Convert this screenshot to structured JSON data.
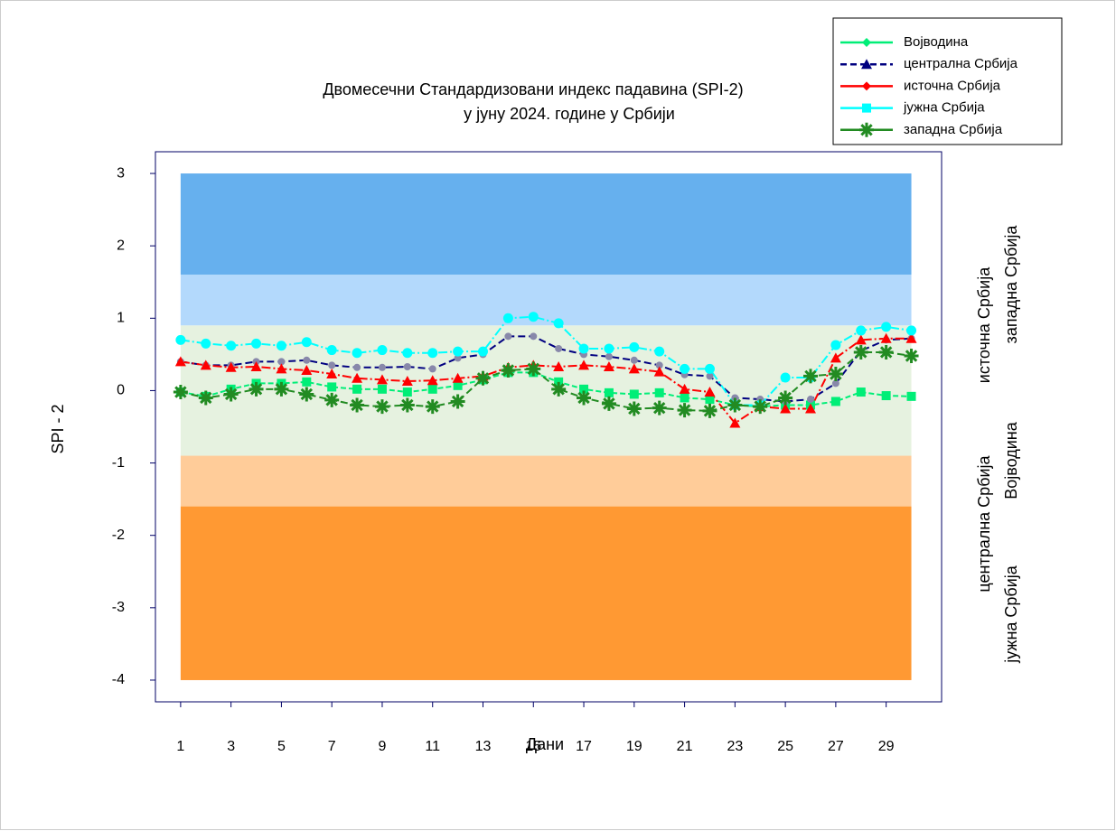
{
  "chart_data": {
    "type": "line",
    "title": "Двомесечни Стандардизовани индекс падавина (SPI-2)",
    "subtitle": "у јуну 2024. године у Србији",
    "x_label": "Дани",
    "y_label": "SPI - 2",
    "x": [
      1,
      2,
      3,
      4,
      5,
      6,
      7,
      8,
      9,
      10,
      11,
      12,
      13,
      14,
      15,
      16,
      17,
      18,
      19,
      20,
      21,
      22,
      23,
      24,
      25,
      26,
      27,
      28,
      29,
      30
    ],
    "xlim": [
      0,
      31.2
    ],
    "xticks": [
      1,
      3,
      5,
      7,
      9,
      11,
      13,
      15,
      17,
      19,
      21,
      23,
      25,
      27,
      29
    ],
    "ylim": [
      -4.3,
      3.3
    ],
    "yticks": [
      -4,
      -3,
      -2,
      -1,
      0,
      1,
      2,
      3
    ],
    "bands": [
      {
        "from": 1.6,
        "to": 3,
        "color": "#66b0ee"
      },
      {
        "from": 0.9,
        "to": 1.6,
        "color": "#b3d9fc"
      },
      {
        "from": -0.9,
        "to": 0.9,
        "color": "#e6f2e0"
      },
      {
        "from": -1.6,
        "to": -0.9,
        "color": "#ffcc99"
      },
      {
        "from": -4,
        "to": -1.6,
        "color": "#ff9933"
      }
    ],
    "series": [
      {
        "name": "Војводина",
        "color": "#00ee77",
        "marker": "square",
        "values": [
          -0.02,
          -0.08,
          0.02,
          0.1,
          0.1,
          0.12,
          0.05,
          0.02,
          0.02,
          -0.02,
          0.02,
          0.07,
          0.15,
          0.25,
          0.25,
          0.12,
          0.02,
          -0.03,
          -0.05,
          -0.03,
          -0.1,
          -0.12,
          -0.2,
          -0.22,
          -0.2,
          -0.2,
          -0.15,
          -0.02,
          -0.07,
          -0.08
        ]
      },
      {
        "name": "централна Србија",
        "color": "#000080",
        "marker": "dot",
        "values": [
          0.4,
          0.35,
          0.35,
          0.4,
          0.4,
          0.42,
          0.35,
          0.32,
          0.32,
          0.33,
          0.3,
          0.45,
          0.5,
          0.75,
          0.75,
          0.58,
          0.5,
          0.47,
          0.42,
          0.35,
          0.22,
          0.2,
          -0.1,
          -0.12,
          -0.15,
          -0.12,
          0.1,
          0.55,
          0.7,
          0.72
        ]
      },
      {
        "name": "источна Србија",
        "color": "#ff0000",
        "marker": "triangle",
        "values": [
          0.4,
          0.35,
          0.32,
          0.33,
          0.3,
          0.28,
          0.23,
          0.17,
          0.15,
          0.13,
          0.14,
          0.17,
          0.2,
          0.32,
          0.35,
          0.33,
          0.35,
          0.33,
          0.3,
          0.26,
          0.02,
          -0.02,
          -0.45,
          -0.22,
          -0.25,
          -0.25,
          0.45,
          0.7,
          0.72,
          0.72
        ]
      },
      {
        "name": "јужна Србија",
        "color": "#00ffff",
        "marker": "circle",
        "values": [
          0.7,
          0.65,
          0.62,
          0.65,
          0.62,
          0.67,
          0.56,
          0.52,
          0.56,
          0.52,
          0.52,
          0.54,
          0.54,
          1.0,
          1.02,
          0.93,
          0.58,
          0.58,
          0.6,
          0.54,
          0.3,
          0.3,
          -0.2,
          -0.2,
          0.18,
          0.18,
          0.63,
          0.83,
          0.88,
          0.83
        ]
      },
      {
        "name": "западна Србија",
        "color": "#228b22",
        "marker": "star",
        "values": [
          -0.02,
          -0.1,
          -0.05,
          0.02,
          0.02,
          -0.05,
          -0.13,
          -0.2,
          -0.22,
          -0.2,
          -0.22,
          -0.15,
          0.17,
          0.28,
          0.3,
          0.02,
          -0.1,
          -0.18,
          -0.25,
          -0.24,
          -0.27,
          -0.28,
          -0.2,
          -0.22,
          -0.1,
          0.2,
          0.23,
          0.53,
          0.53,
          0.48
        ]
      }
    ],
    "annotations": [
      {
        "text": "источна Србија",
        "color": "#ff0000"
      },
      {
        "text": "западна Србија",
        "color": "#22aa22"
      },
      {
        "text": "централна Србија",
        "color": "#000080"
      },
      {
        "text": "Војводина",
        "color": "#00dd66"
      },
      {
        "text": "јужна Србија",
        "color": "#00e0e0"
      }
    ]
  }
}
